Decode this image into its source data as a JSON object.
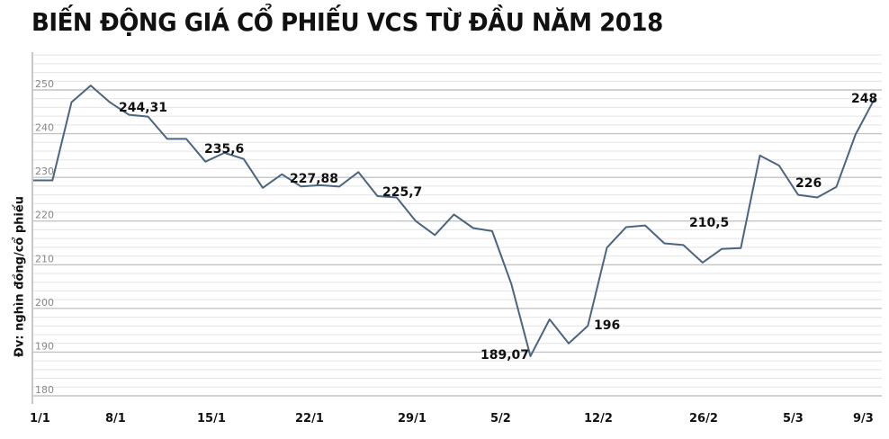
{
  "title": "BIẾN ĐỘNG GIÁ CỔ PHIẾU VCS TỪ ĐẦU NĂM 2018",
  "chart_data": {
    "type": "line",
    "title": "BIẾN ĐỘNG GIÁ CỔ PHIẾU VCS TỪ ĐẦU NĂM 2018",
    "xlabel": "",
    "ylabel": "Đv: nghìn đồng/cổ phiếu",
    "ylim": [
      180,
      260
    ],
    "yticks": [
      180,
      190,
      200,
      210,
      220,
      230,
      240,
      250
    ],
    "xtick_labels": [
      "1/1",
      "8/1",
      "15/1",
      "22/1",
      "29/1",
      "5/2",
      "12/2",
      "26/2",
      "5/3",
      "9/3"
    ],
    "grid": true,
    "legend": null,
    "line_color": "#4a6582",
    "series": [
      {
        "name": "VCS",
        "values": [
          229.3,
          229.3,
          247.2,
          251,
          247.2,
          244.31,
          243.9,
          238.8,
          238.8,
          233.6,
          235.6,
          234.2,
          227.6,
          230.7,
          227.9,
          228.2,
          227.88,
          231.2,
          225.7,
          225.4,
          220,
          216.8,
          221.5,
          218.4,
          217.7,
          205.6,
          189.07,
          197.5,
          192,
          196,
          213.9,
          218.6,
          219,
          214.9,
          214.5,
          210.5,
          213.6,
          213.8,
          235,
          232.7,
          226,
          225.4,
          227.8,
          239.8,
          248
        ]
      }
    ],
    "annotations": [
      {
        "text": "244,31",
        "value": 244.31
      },
      {
        "text": "235,6",
        "value": 235.6
      },
      {
        "text": "227,88",
        "value": 227.88
      },
      {
        "text": "225,7",
        "value": 225.7
      },
      {
        "text": "189,07",
        "value": 189.07
      },
      {
        "text": "196",
        "value": 196
      },
      {
        "text": "210,5",
        "value": 210.5
      },
      {
        "text": "226",
        "value": 226
      },
      {
        "text": "248",
        "value": 248
      }
    ]
  }
}
